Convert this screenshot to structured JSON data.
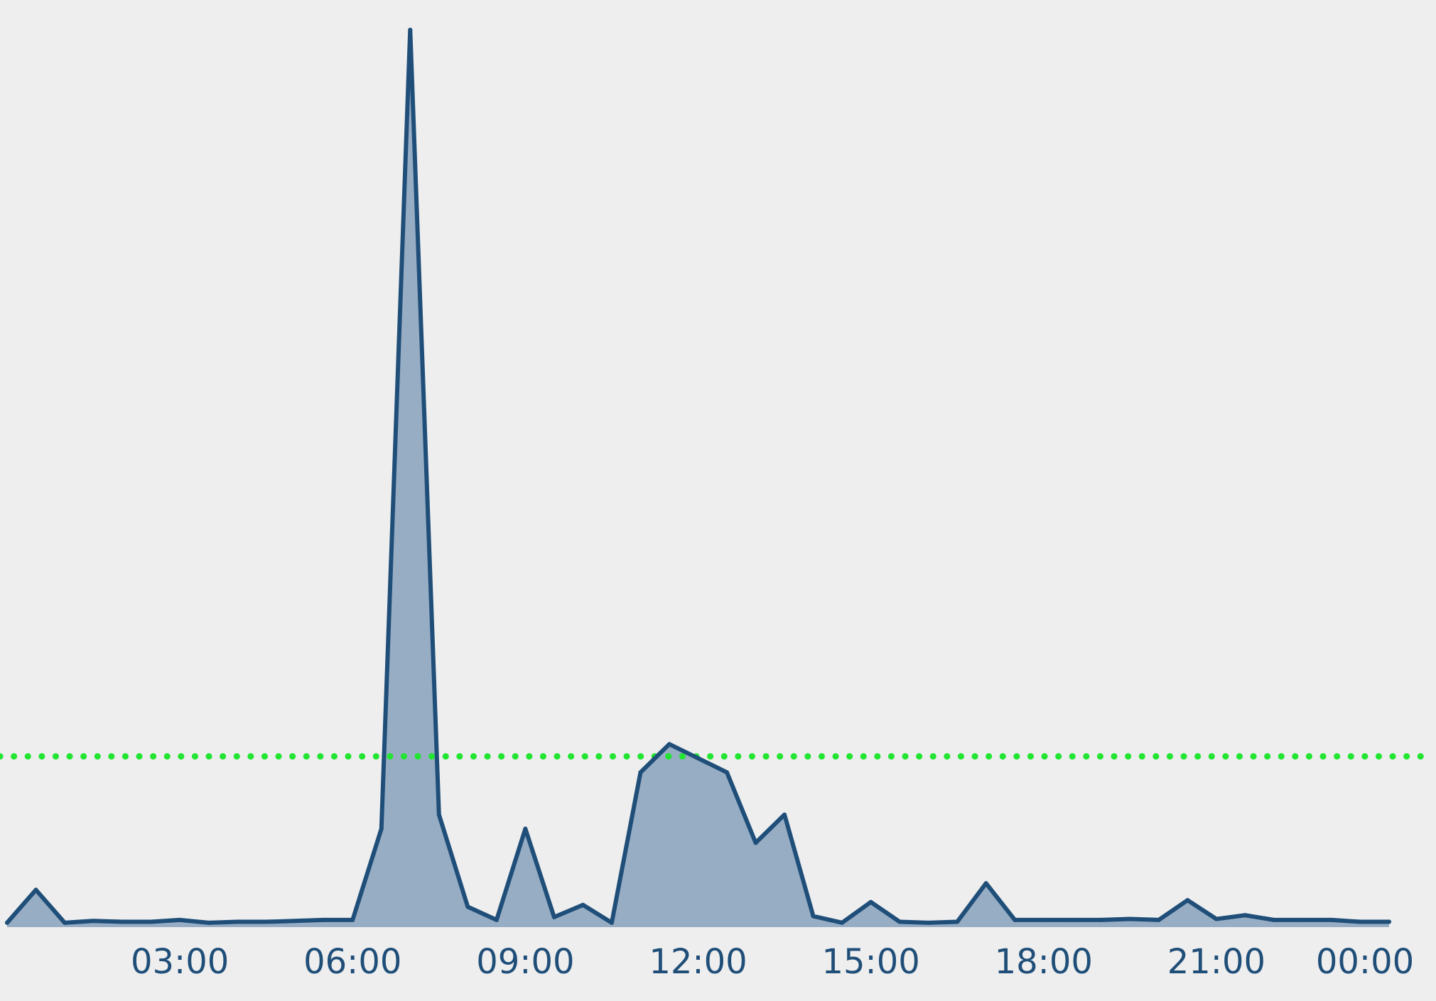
{
  "chart_data": {
    "type": "area",
    "x_ticks": [
      "03:00",
      "06:00",
      "09:00",
      "12:00",
      "15:00",
      "18:00",
      "21:00",
      "00:00"
    ],
    "x_range_hours": [
      0.0,
      24.0
    ],
    "y_range": [
      0,
      100
    ],
    "grid": false,
    "legend": "none",
    "series": [
      {
        "x_hours": [
          0.0,
          0.5,
          1.0,
          1.5,
          2.0,
          2.5,
          3.0,
          3.5,
          4.0,
          4.5,
          5.0,
          5.5,
          6.0,
          6.5,
          7.0,
          7.5,
          8.0,
          8.5,
          9.0,
          9.5,
          10.0,
          10.5,
          11.0,
          11.5,
          12.0,
          12.5,
          13.0,
          13.5,
          14.0,
          14.5,
          15.0,
          15.5,
          16.0,
          16.5,
          17.0,
          17.5,
          18.0,
          18.5,
          19.0,
          19.5,
          20.0,
          20.5,
          21.0,
          21.5,
          22.0,
          22.5,
          23.0,
          23.5,
          24.0
        ],
        "values": [
          5.0,
          8.5,
          5.0,
          5.2,
          5.1,
          5.1,
          5.3,
          5.0,
          5.1,
          5.1,
          5.2,
          5.3,
          5.3,
          15.0,
          100.0,
          16.5,
          6.7,
          5.3,
          15.0,
          5.6,
          6.9,
          5.0,
          21.0,
          24.0,
          22.5,
          21.0,
          13.5,
          16.5,
          5.7,
          5.0,
          7.2,
          5.1,
          5.0,
          5.1,
          9.2,
          5.3,
          5.3,
          5.3,
          5.3,
          5.4,
          5.3,
          7.4,
          5.4,
          5.8,
          5.3,
          5.3,
          5.3,
          5.1,
          5.1
        ]
      }
    ],
    "reference_line": {
      "value": 22.7,
      "style": "dotted"
    },
    "colors": {
      "background": "#eeeeee",
      "line": "#1f4e79",
      "area_fill": "#97adc4",
      "reference_line": "#22e532",
      "tick_text": "#1f4e79"
    }
  }
}
